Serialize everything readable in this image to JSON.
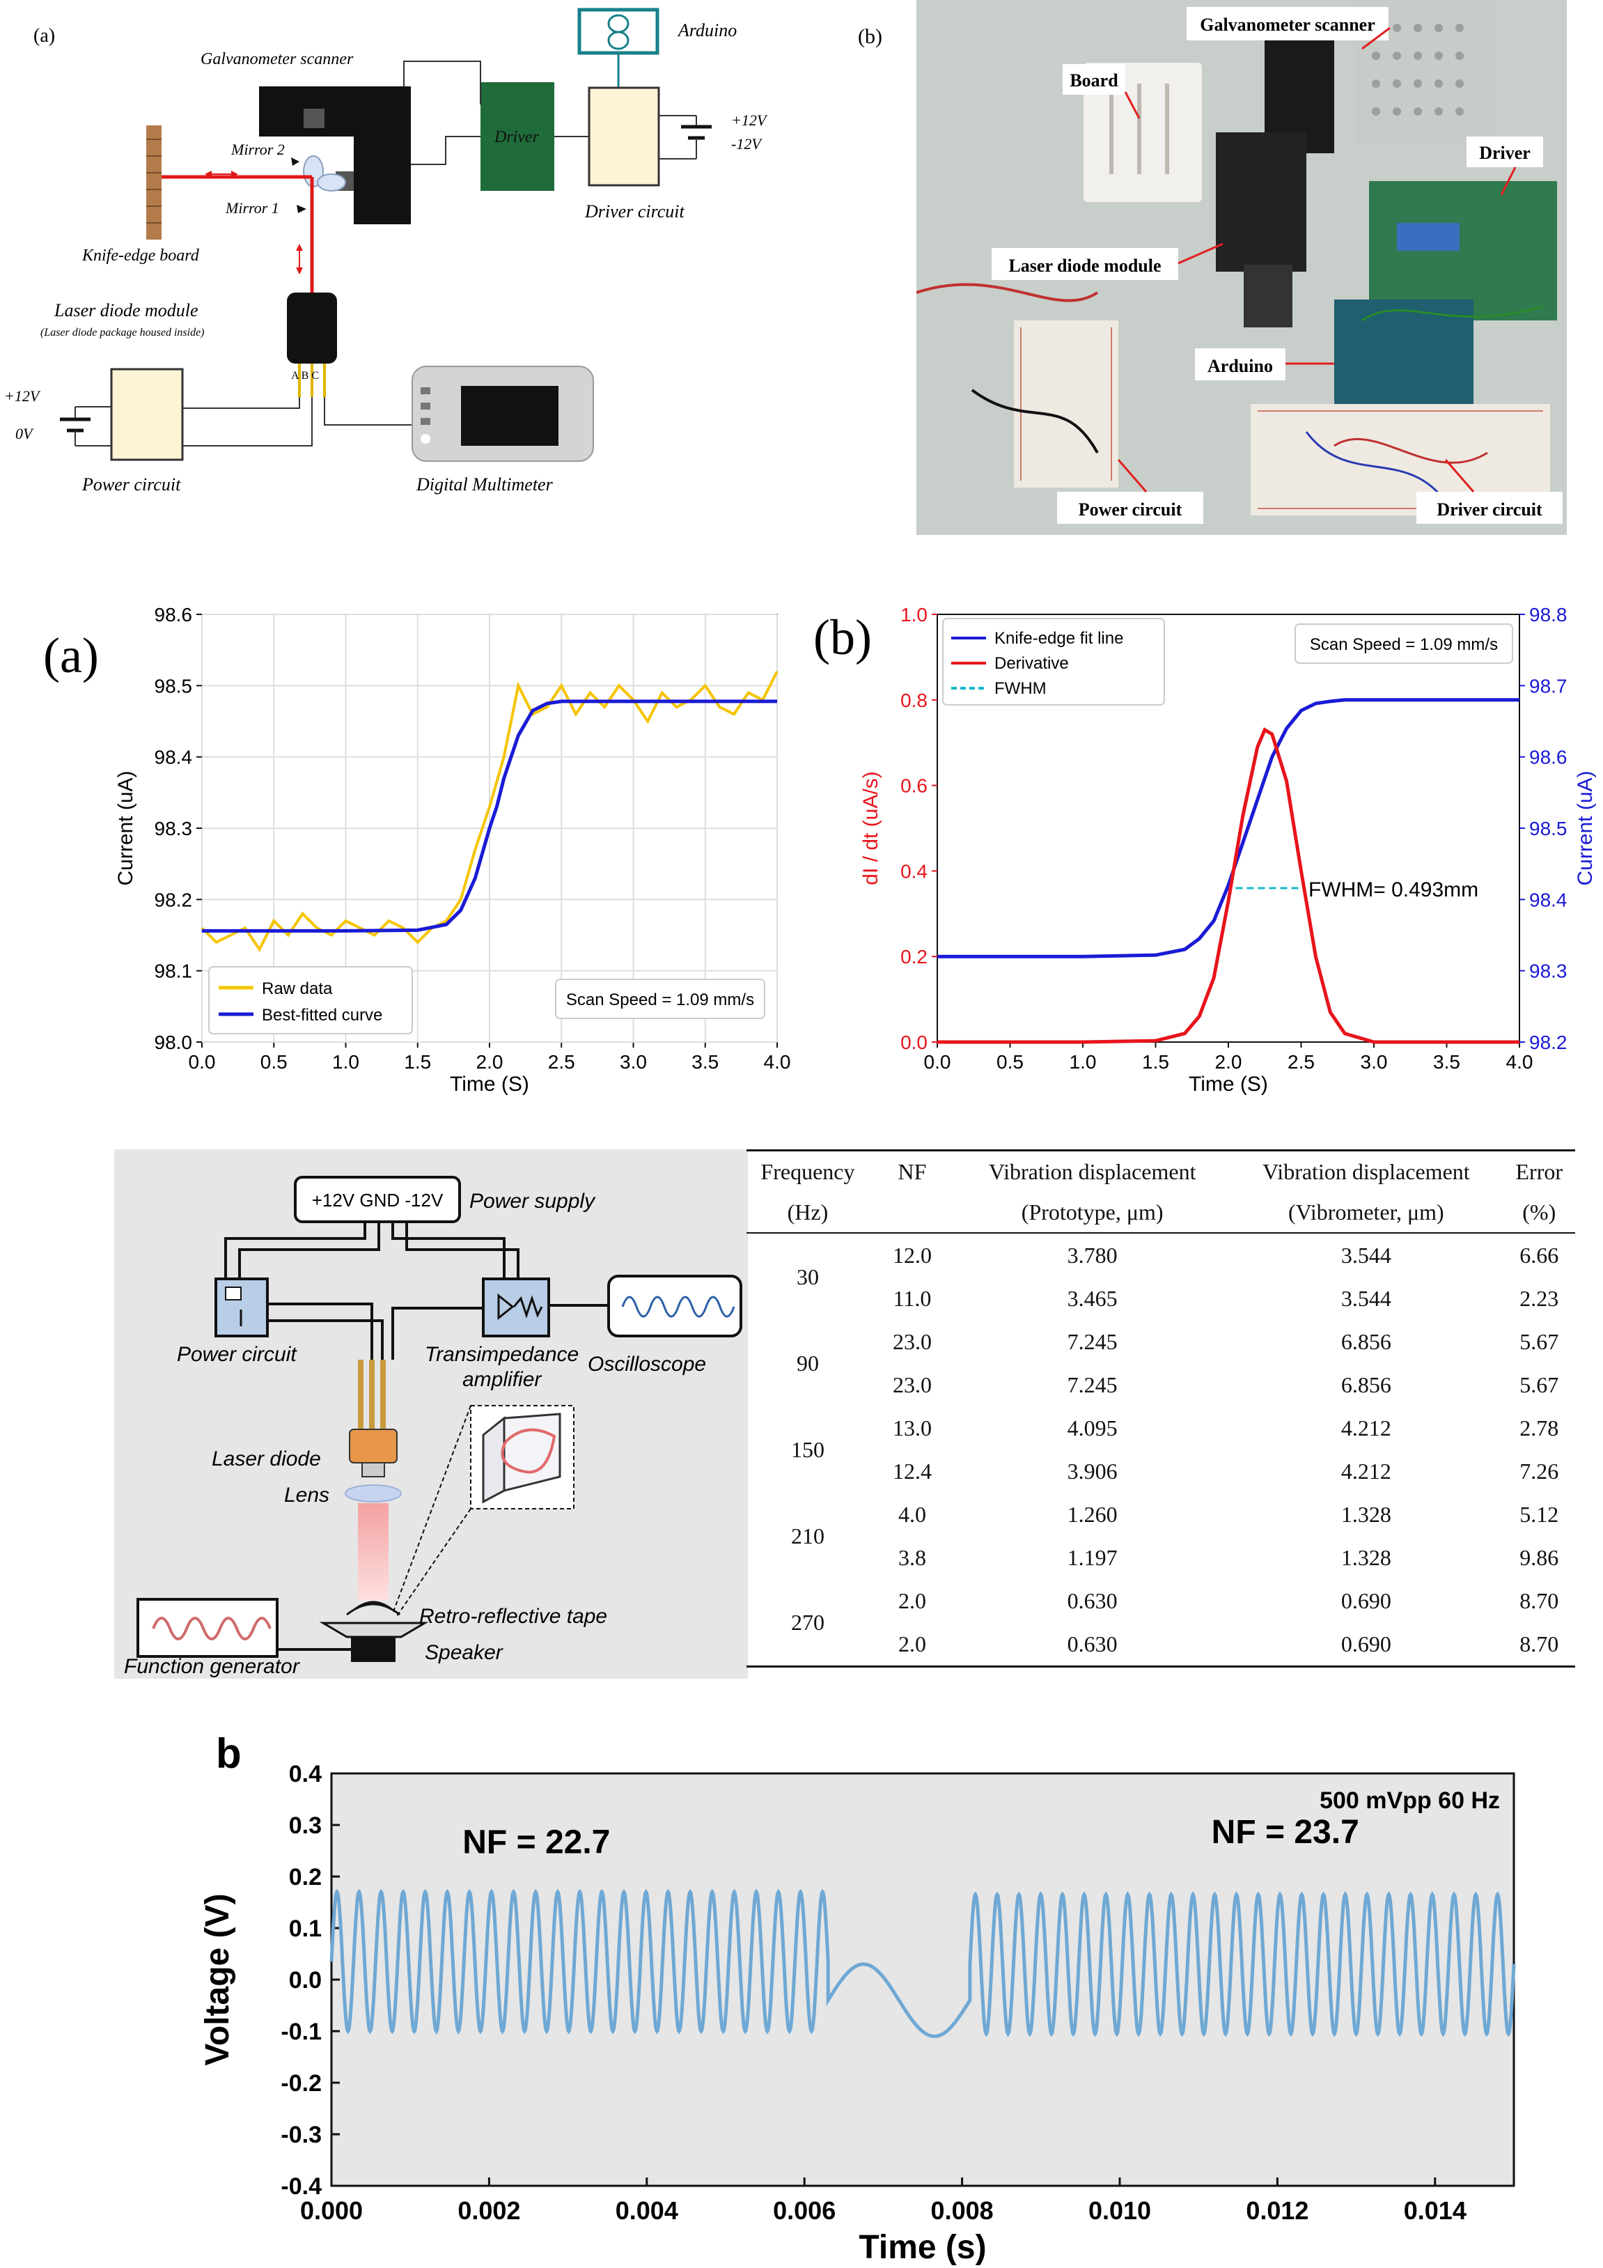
{
  "fig1": {
    "panel_a_label": "(a)",
    "panel_b_label": "(b)",
    "schematic": {
      "galvanometer": "Galvanometer scanner",
      "arduino": "Arduino",
      "driver": "Driver",
      "driver_circuit": "Driver circuit",
      "plus12": "+12V",
      "minus12": "-12V",
      "mirror2": "Mirror 2",
      "mirror1": "Mirror 1",
      "knife_edge": "Knife-edge board",
      "laser_module": "Laser diode module",
      "laser_note": "(Laser diode package housed inside)",
      "pins": "A B C",
      "power_plus": "+12V",
      "power_zero": "0V",
      "power_circuit": "Power circuit",
      "multimeter": "Digital Multimeter"
    },
    "photo_labels": {
      "galvanometer": "Galvanometer scanner",
      "board": "Board",
      "driver": "Driver",
      "laser": "Laser diode module",
      "arduino": "Arduino",
      "power": "Power circuit",
      "driver_circuit": "Driver circuit"
    }
  },
  "fig2": {
    "panel_a_label": "(a)",
    "panel_b_label": "(b)"
  },
  "fig3": {
    "schematic": {
      "power_supply": "Power supply",
      "rails": "+12V  GND  -12V",
      "power_circuit": "Power circuit",
      "tia_line1": "Transimpedance",
      "tia_line2": "amplifier",
      "oscilloscope": "Oscilloscope",
      "laser_diode": "Laser diode",
      "lens": "Lens",
      "tape": "Retro-reflective tape",
      "speaker": "Speaker",
      "function_generator": "Function generator"
    },
    "table": {
      "headers_row1": [
        "Frequency",
        "NF",
        "Vibration displacement",
        "Vibration displacement",
        "Error"
      ],
      "headers_row2": [
        "(Hz)",
        "",
        "(Prototype, μm)",
        "(Vibrometer, μm)",
        "(%)"
      ],
      "groups": [
        {
          "freq": "30",
          "rows": [
            [
              "12.0",
              "3.780",
              "3.544",
              "6.66"
            ],
            [
              "11.0",
              "3.465",
              "3.544",
              "2.23"
            ]
          ]
        },
        {
          "freq": "90",
          "rows": [
            [
              "23.0",
              "7.245",
              "6.856",
              "5.67"
            ],
            [
              "23.0",
              "7.245",
              "6.856",
              "5.67"
            ]
          ]
        },
        {
          "freq": "150",
          "rows": [
            [
              "13.0",
              "4.095",
              "4.212",
              "2.78"
            ],
            [
              "12.4",
              "3.906",
              "4.212",
              "7.26"
            ]
          ]
        },
        {
          "freq": "210",
          "rows": [
            [
              "4.0",
              "1.260",
              "1.328",
              "5.12"
            ],
            [
              "3.8",
              "1.197",
              "1.328",
              "9.86"
            ]
          ]
        },
        {
          "freq": "270",
          "rows": [
            [
              "2.0",
              "0.630",
              "0.690",
              "8.70"
            ],
            [
              "2.0",
              "0.630",
              "0.690",
              "8.70"
            ]
          ]
        }
      ]
    }
  },
  "chart_data": [
    {
      "id": "knife-edge-current",
      "type": "line",
      "panel": "(a)",
      "xlabel": "Time (S)",
      "ylabel": "Current (uA)",
      "xlim": [
        0.0,
        4.0
      ],
      "ylim": [
        98.0,
        98.6
      ],
      "x_ticks": [
        "0.0",
        "0.5",
        "1.0",
        "1.5",
        "2.0",
        "2.5",
        "3.0",
        "3.5",
        "4.0"
      ],
      "y_ticks": [
        "98.0",
        "98.1",
        "98.2",
        "98.3",
        "98.4",
        "98.5",
        "98.6"
      ],
      "grid": true,
      "legend_position": "bottom-left",
      "annotation": "Scan Speed = 1.09 mm/s",
      "series": [
        {
          "name": "Raw data",
          "color": "#f5c400",
          "x": [
            0.0,
            0.1,
            0.2,
            0.3,
            0.4,
            0.5,
            0.6,
            0.7,
            0.8,
            0.9,
            1.0,
            1.1,
            1.2,
            1.3,
            1.4,
            1.5,
            1.6,
            1.7,
            1.8,
            1.9,
            2.0,
            2.1,
            2.2,
            2.3,
            2.4,
            2.5,
            2.6,
            2.7,
            2.8,
            2.9,
            3.0,
            3.1,
            3.2,
            3.3,
            3.4,
            3.5,
            3.6,
            3.7,
            3.8,
            3.9,
            4.0
          ],
          "y": [
            98.16,
            98.14,
            98.15,
            98.16,
            98.13,
            98.17,
            98.15,
            98.18,
            98.16,
            98.15,
            98.17,
            98.16,
            98.15,
            98.17,
            98.16,
            98.14,
            98.16,
            98.17,
            98.2,
            98.27,
            98.33,
            98.4,
            98.5,
            98.46,
            98.47,
            98.5,
            98.46,
            98.49,
            98.47,
            98.5,
            98.48,
            98.45,
            98.49,
            98.47,
            98.48,
            98.5,
            98.47,
            98.46,
            98.49,
            98.48,
            98.52
          ]
        },
        {
          "name": "Best-fitted curve",
          "color": "#1a1ad6",
          "x": [
            0.0,
            0.5,
            1.0,
            1.5,
            1.7,
            1.8,
            1.9,
            2.0,
            2.05,
            2.1,
            2.2,
            2.3,
            2.4,
            2.5,
            2.7,
            3.0,
            3.5,
            4.0
          ],
          "y": [
            98.156,
            98.156,
            98.156,
            98.157,
            98.165,
            98.185,
            98.23,
            98.3,
            98.33,
            98.37,
            98.43,
            98.465,
            98.475,
            98.478,
            98.478,
            98.478,
            98.478,
            98.478
          ]
        }
      ]
    },
    {
      "id": "derivative-fwhm",
      "type": "line",
      "panel": "(b)",
      "xlabel": "Time (S)",
      "ylabel_left": "dI / dt (uA/s)",
      "ylabel_right": "Current (uA)",
      "xlim": [
        0.0,
        4.0
      ],
      "ylim_left": [
        0.0,
        1.0
      ],
      "ylim_right": [
        98.2,
        98.8
      ],
      "x_ticks": [
        "0.0",
        "0.5",
        "1.0",
        "1.5",
        "2.0",
        "2.5",
        "3.0",
        "3.5",
        "4.0"
      ],
      "y_ticks_left": [
        "0.0",
        "0.2",
        "0.4",
        "0.6",
        "0.8",
        "1.0"
      ],
      "y_ticks_right": [
        "98.2",
        "98.3",
        "98.4",
        "98.5",
        "98.6",
        "98.7",
        "98.8"
      ],
      "grid": false,
      "legend_position": "top-left",
      "annotation": "Scan Speed = 1.09 mm/s",
      "fwhm_label": "FWHM= 0.493mm",
      "series": [
        {
          "name": "Knife-edge fit line",
          "color": "#1a1ad6",
          "axis": "right",
          "x": [
            0.0,
            0.5,
            1.0,
            1.5,
            1.7,
            1.8,
            1.9,
            2.0,
            2.1,
            2.2,
            2.3,
            2.4,
            2.5,
            2.6,
            2.7,
            2.8,
            3.0,
            3.5,
            4.0
          ],
          "y": [
            98.32,
            98.32,
            98.32,
            98.322,
            98.33,
            98.345,
            98.37,
            98.42,
            98.48,
            98.54,
            98.6,
            98.64,
            98.665,
            98.675,
            98.678,
            98.68,
            98.68,
            98.68,
            98.68
          ]
        },
        {
          "name": "Derivative",
          "color": "#e8141c",
          "axis": "left",
          "x": [
            0.0,
            1.0,
            1.5,
            1.7,
            1.8,
            1.9,
            2.0,
            2.1,
            2.2,
            2.25,
            2.3,
            2.4,
            2.5,
            2.6,
            2.7,
            2.8,
            3.0,
            3.5,
            4.0
          ],
          "y": [
            0.0,
            0.0,
            0.003,
            0.02,
            0.06,
            0.15,
            0.33,
            0.53,
            0.69,
            0.73,
            0.72,
            0.61,
            0.4,
            0.2,
            0.07,
            0.02,
            0.0,
            0.0,
            0.0
          ]
        },
        {
          "name": "FWHM",
          "color": "#17b8c8",
          "axis": "left",
          "dashed": true,
          "x": [
            2.05,
            2.5
          ],
          "y": [
            0.36,
            0.36
          ]
        }
      ]
    },
    {
      "id": "voltage-trace",
      "type": "line",
      "panel": "b",
      "xlabel": "Time (s)",
      "ylabel": "Voltage (V)",
      "xlim": [
        0.0,
        0.015
      ],
      "ylim": [
        -0.4,
        0.4
      ],
      "x_ticks": [
        "0.000",
        "0.002",
        "0.004",
        "0.006",
        "0.008",
        "0.010",
        "0.012",
        "0.014"
      ],
      "y_ticks": [
        "-0.4",
        "-0.3",
        "-0.2",
        "-0.1",
        "0.0",
        "0.1",
        "0.2",
        "0.3",
        "0.4"
      ],
      "annotations": [
        "500 mVpp   60 Hz",
        "NF = 22.7",
        "NF = 23.7"
      ],
      "grid": false,
      "series": [
        {
          "color": "#6fa8d4",
          "segments": [
            {
              "x_start": 0.0,
              "x_end": 0.0063,
              "cycles": 22.5,
              "amplitude": 0.135,
              "offset": 0.035
            },
            {
              "x_start": 0.0063,
              "x_end": 0.0081,
              "cycles": 1.0,
              "amplitude": 0.07,
              "offset": -0.04
            },
            {
              "x_start": 0.0081,
              "x_end": 0.015,
              "cycles": 25.0,
              "amplitude": 0.135,
              "offset": 0.03
            }
          ]
        }
      ]
    }
  ]
}
